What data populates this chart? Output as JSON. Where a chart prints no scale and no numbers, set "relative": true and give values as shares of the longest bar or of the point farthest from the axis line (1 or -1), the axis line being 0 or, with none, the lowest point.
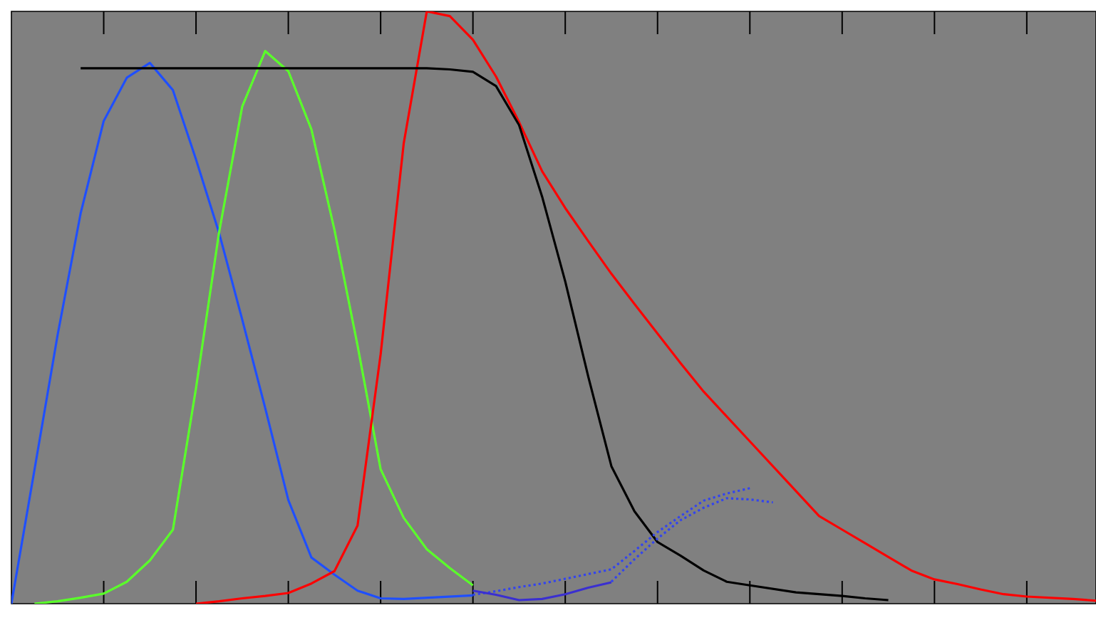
{
  "chart_data": {
    "type": "line",
    "relative": true,
    "categories": [
      null,
      null,
      null,
      null,
      null,
      null,
      null,
      null,
      null,
      null,
      null,
      null,
      null,
      null,
      null,
      null,
      null,
      null,
      null,
      null,
      null,
      null,
      null,
      null,
      null,
      null,
      null,
      null,
      null,
      null,
      null,
      null,
      null,
      null,
      null,
      null,
      null,
      null,
      null,
      null,
      null,
      null,
      null,
      null,
      null,
      null,
      null,
      null
    ],
    "series": [
      {
        "color": "#1f4fff",
        "values": [
          0,
          0.226,
          0.453,
          0.659,
          0.815,
          0.888,
          0.913,
          0.867,
          0.75,
          0.626,
          0.48,
          0.33,
          0.175,
          0.078,
          0.049,
          0.022,
          0.009,
          0.008,
          0.01,
          0.012,
          0.014,
          null,
          null,
          null,
          null,
          null,
          null,
          null,
          null,
          null,
          null,
          null,
          null,
          null,
          null,
          null,
          null,
          null,
          null,
          null,
          null,
          null,
          null,
          null,
          null,
          null,
          null,
          null
        ]
      },
      {
        "color": "#5aff2a",
        "values": [
          null,
          0,
          0.004,
          0.01,
          0.017,
          0.037,
          0.073,
          0.125,
          0.364,
          0.627,
          0.839,
          0.933,
          0.899,
          0.801,
          0.631,
          0.436,
          0.227,
          0.145,
          0.092,
          0.06,
          0.031,
          null,
          null,
          null,
          null,
          null,
          null,
          null,
          null,
          null,
          null,
          null,
          null,
          null,
          null,
          null,
          null,
          null,
          null,
          null,
          null,
          null,
          null,
          null,
          null,
          null,
          null,
          null
        ]
      },
      {
        "color": "#ff0000",
        "values": [
          null,
          null,
          null,
          null,
          null,
          null,
          null,
          null,
          0,
          0.004,
          0.009,
          0.013,
          0.018,
          0.034,
          0.055,
          0.132,
          0.421,
          0.777,
          1,
          0.992,
          0.952,
          0.89,
          0.813,
          0.73,
          0.668,
          0.612,
          0.557,
          0.506,
          0.456,
          0.406,
          0.358,
          0.316,
          0.274,
          0.232,
          0.19,
          0.148,
          0.125,
          0.102,
          0.079,
          0.056,
          0.041,
          0.033,
          0.024,
          0.016,
          0.012,
          0.01,
          0.008,
          0.005
        ]
      },
      {
        "color": "#000000",
        "values": [
          null,
          null,
          null,
          0.904,
          0.904,
          0.904,
          0.904,
          0.904,
          0.904,
          0.904,
          0.904,
          0.904,
          0.904,
          0.904,
          0.904,
          0.904,
          0.904,
          0.904,
          0.904,
          0.902,
          0.898,
          0.874,
          0.808,
          0.687,
          0.544,
          0.383,
          0.232,
          0.156,
          0.104,
          0.081,
          0.056,
          0.037,
          0.031,
          0.025,
          0.019,
          0.016,
          0.013,
          0.009,
          0.006,
          null,
          null,
          null,
          null,
          null,
          null,
          null,
          null,
          null
        ]
      },
      {
        "color": "#3344ee",
        "line_style": "dotted",
        "values": [
          null,
          null,
          null,
          null,
          null,
          null,
          null,
          null,
          null,
          null,
          null,
          null,
          null,
          null,
          null,
          null,
          null,
          null,
          null,
          null,
          0.015,
          0.021,
          0.028,
          0.034,
          0.042,
          0.05,
          0.058,
          0.089,
          0.121,
          0.148,
          0.174,
          0.186,
          0.195,
          null,
          null,
          null,
          null,
          null,
          null,
          null,
          null,
          null,
          null,
          null,
          null,
          null,
          null,
          null
        ]
      },
      {
        "color": "#3344ee",
        "line_style": "dotted",
        "values": [
          null,
          null,
          null,
          null,
          null,
          null,
          null,
          null,
          null,
          null,
          null,
          null,
          null,
          null,
          null,
          null,
          null,
          null,
          null,
          null,
          null,
          null,
          null,
          null,
          null,
          null,
          0.037,
          0.075,
          0.11,
          0.141,
          0.162,
          0.178,
          0.176,
          0.171,
          null,
          null,
          null,
          null,
          null,
          null,
          null,
          null,
          null,
          null,
          null,
          null,
          null,
          null
        ]
      },
      {
        "color": "#3a2fd0",
        "values": [
          null,
          null,
          null,
          null,
          null,
          null,
          null,
          null,
          null,
          null,
          null,
          null,
          null,
          null,
          null,
          null,
          null,
          null,
          null,
          null,
          0.022,
          0.015,
          0.006,
          0.008,
          0.016,
          0.027,
          0.036,
          null,
          null,
          null,
          null,
          null,
          null,
          null,
          null,
          null,
          null,
          null,
          null,
          null,
          null,
          null,
          null,
          null,
          null,
          null,
          null,
          null
        ]
      }
    ]
  }
}
